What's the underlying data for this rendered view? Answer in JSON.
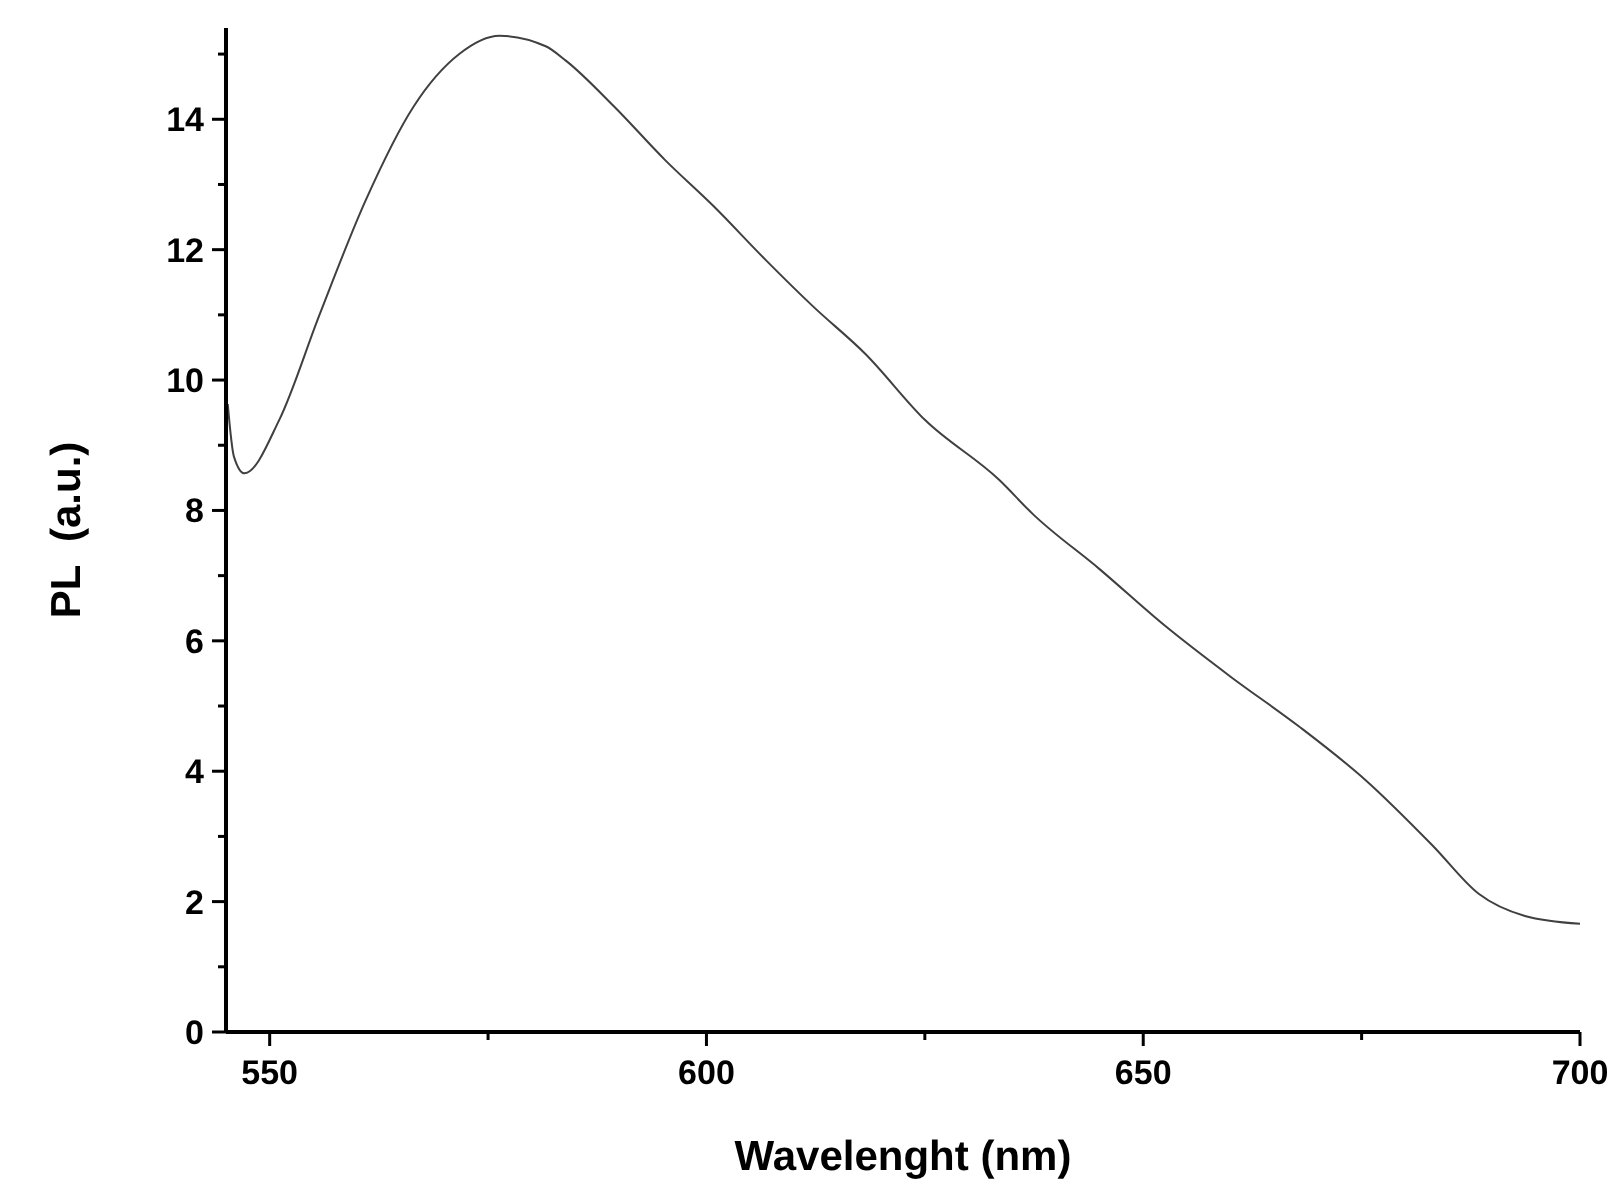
{
  "chart_data": {
    "type": "line",
    "xlabel": "Wavelenght (nm)",
    "ylabel": "PL  (a.u.)",
    "x": [
      545.2,
      545.9,
      547.1,
      551.1,
      555.7,
      561,
      566.5,
      571.7,
      576.3,
      581.6,
      583.9,
      589.4,
      595.3,
      600.8,
      606.8,
      612.2,
      618.2,
      625,
      633.5,
      637.4,
      645,
      652.5,
      660,
      667.8,
      675.4,
      683.2,
      688.4,
      693.7,
      700
    ],
    "series": [
      {
        "color": "#404040",
        "values": [
          9.63,
          8.83,
          8.57,
          9.39,
          11.0,
          12.76,
          14.2,
          15.0,
          15.28,
          15.12,
          14.9,
          14.2,
          13.37,
          12.67,
          11.84,
          11.13,
          10.4,
          9.39,
          8.47,
          7.94,
          7.1,
          6.23,
          5.45,
          4.69,
          3.87,
          2.85,
          2.12,
          1.78,
          1.66
        ]
      }
    ],
    "xlim": [
      545,
      700
    ],
    "xticks": [
      550,
      {
        "value": 575,
        "label": null
      },
      600,
      {
        "value": 625,
        "label": null
      },
      650,
      {
        "value": 675,
        "label": null
      },
      700
    ],
    "ylim": [
      0,
      15.4
    ],
    "yticks": [
      0,
      {
        "value": 1,
        "label": null
      },
      2,
      {
        "value": 3,
        "label": null
      },
      4,
      {
        "value": 5,
        "label": null
      },
      6,
      {
        "value": 7,
        "label": null
      },
      8,
      {
        "value": 9,
        "label": null
      },
      10,
      {
        "value": 11,
        "label": null
      },
      12,
      {
        "value": 13,
        "label": null
      },
      14,
      {
        "value": 15,
        "label": null
      }
    ]
  }
}
